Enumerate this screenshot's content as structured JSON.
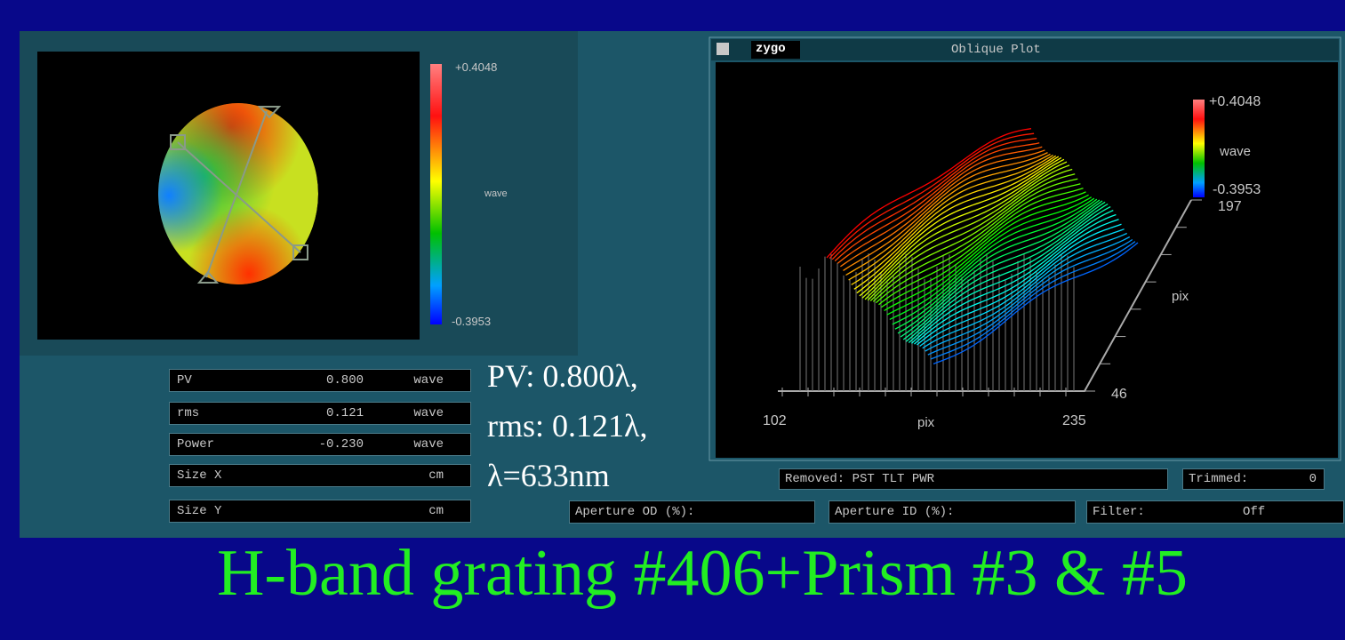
{
  "left_panel": {
    "colorbar": {
      "max": "+0.4048",
      "unit": "wave",
      "min": "-0.3953"
    }
  },
  "stats": {
    "rows": [
      {
        "label": "PV",
        "value": "0.800",
        "unit": "wave"
      },
      {
        "label": "rms",
        "value": "0.121",
        "unit": "wave"
      },
      {
        "label": "Power",
        "value": "-0.230",
        "unit": "wave"
      },
      {
        "label": "Size X",
        "unit": "cm"
      },
      {
        "label": "Size Y",
        "unit": "cm"
      }
    ]
  },
  "annotation": [
    "PV: 0.800λ,",
    "rms: 0.121λ,",
    "λ=633nm"
  ],
  "oblique_plot": {
    "logo": "zygo",
    "title": "Oblique Plot",
    "colorbar": {
      "max": "+0.4048",
      "unit": "wave",
      "min": "-0.3953",
      "extra": "197"
    },
    "y_axis": {
      "label": "pix",
      "tick": "46"
    },
    "x_axis": {
      "start": "102",
      "label": "pix",
      "end": "235"
    }
  },
  "status": {
    "removed": "Removed: PST TLT PWR",
    "trimmed_label": "Trimmed:",
    "trimmed_value": "0",
    "aperture_od": "Aperture OD (%):",
    "aperture_id": "Aperture ID (%):",
    "filter_label": "Filter:",
    "filter_value": "Off"
  },
  "caption": "H-band grating #406+Prism #3 & #5"
}
